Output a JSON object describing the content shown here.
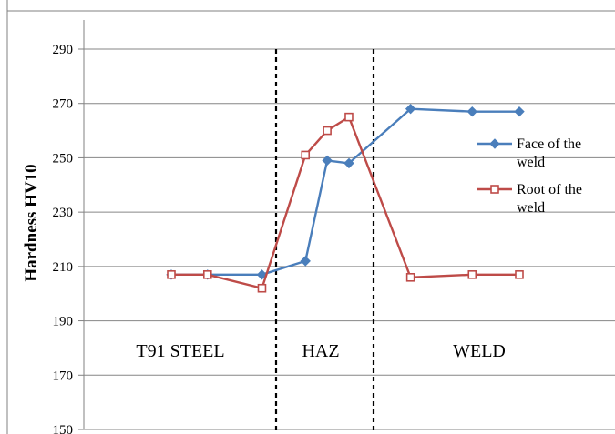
{
  "chart_data": {
    "type": "line",
    "ylabel": "Hardness HV10",
    "xlabel": "",
    "title": "",
    "ylim": [
      150,
      290
    ],
    "yticks": [
      150,
      170,
      190,
      210,
      230,
      250,
      270,
      290
    ],
    "grid": "horizontal",
    "legend_position": "right",
    "regions": [
      {
        "label": "T91 STEEL"
      },
      {
        "label": "HAZ"
      },
      {
        "label": "WELD"
      }
    ],
    "series": [
      {
        "name": "Face of the weld",
        "color": "#4a7ebb",
        "marker": "diamond",
        "points": [
          {
            "x": 0,
            "y": 207
          },
          {
            "x": 1,
            "y": 207
          },
          {
            "x": 2.5,
            "y": 207
          },
          {
            "x": 3.7,
            "y": 212
          },
          {
            "x": 4.3,
            "y": 249
          },
          {
            "x": 4.9,
            "y": 248
          },
          {
            "x": 6.6,
            "y": 268
          },
          {
            "x": 8.3,
            "y": 267
          },
          {
            "x": 9.6,
            "y": 267
          }
        ]
      },
      {
        "name": "Root of the weld",
        "color": "#be4b48",
        "marker": "square-open",
        "points": [
          {
            "x": 0,
            "y": 207
          },
          {
            "x": 1,
            "y": 207
          },
          {
            "x": 2.5,
            "y": 202
          },
          {
            "x": 3.7,
            "y": 251
          },
          {
            "x": 4.3,
            "y": 260
          },
          {
            "x": 4.9,
            "y": 265
          },
          {
            "x": 6.6,
            "y": 206
          },
          {
            "x": 8.3,
            "y": 207
          },
          {
            "x": 9.6,
            "y": 207
          }
        ]
      }
    ]
  }
}
